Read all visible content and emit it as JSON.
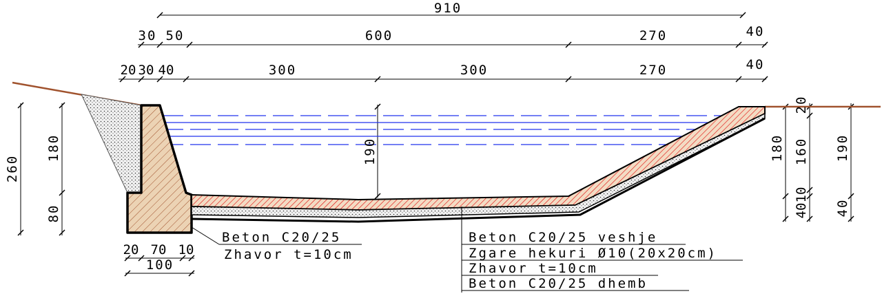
{
  "dimensions": {
    "total_width": "910",
    "upper_row": [
      "30",
      "50",
      "600",
      "270",
      "40"
    ],
    "lower_row": [
      "20",
      "30",
      "40",
      "300",
      "300",
      "270",
      "40"
    ],
    "left_heights": [
      "260",
      "180",
      "80"
    ],
    "water_depth": "190",
    "right_heights": [
      "20",
      "180",
      "160",
      "190",
      "40",
      "10",
      "40"
    ],
    "base_row": [
      "20",
      "70",
      "10"
    ],
    "base_width": "100"
  },
  "labels": {
    "wall": [
      "Beton C20/25",
      "Zhavor t=10cm"
    ],
    "lining": [
      "Beton C20/25 veshje",
      "Zgare hekuri Ø10(20x20cm)",
      "Zhavor t=10cm",
      "Beton C20/25 dhemb"
    ]
  }
}
